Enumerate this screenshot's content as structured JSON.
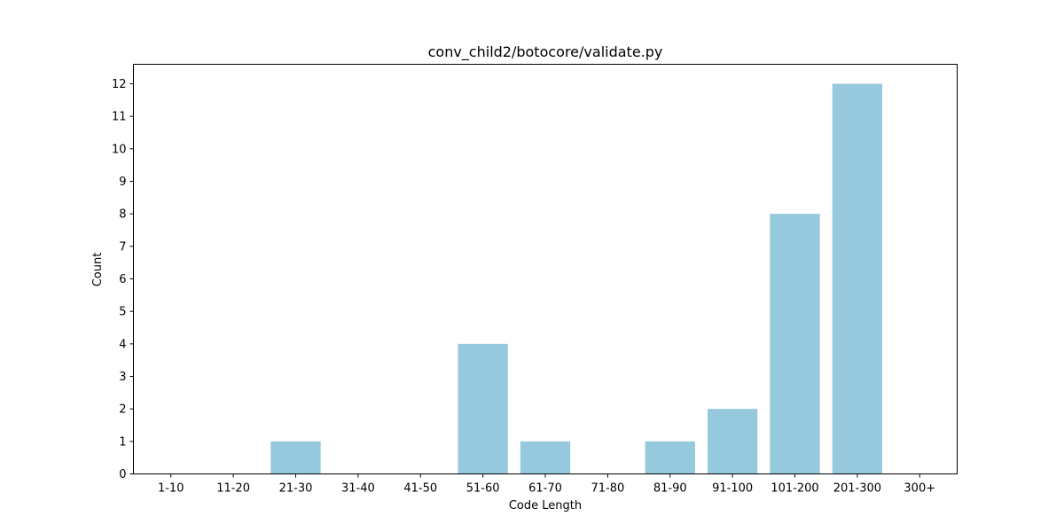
{
  "chart_data": {
    "type": "bar",
    "title": "conv_child2/botocore/validate.py",
    "xlabel": "Code Length",
    "ylabel": "Count",
    "categories": [
      "1-10",
      "11-20",
      "21-30",
      "31-40",
      "41-50",
      "51-60",
      "61-70",
      "71-80",
      "81-90",
      "91-100",
      "101-200",
      "201-300",
      "300+"
    ],
    "values": [
      0,
      0,
      1,
      0,
      0,
      4,
      1,
      0,
      1,
      2,
      8,
      12,
      0
    ],
    "ylim": [
      0,
      12.6
    ],
    "yticks": [
      0,
      1,
      2,
      3,
      4,
      5,
      6,
      7,
      8,
      9,
      10,
      11,
      12
    ],
    "grid": false,
    "bar_color": "#96c9de"
  }
}
